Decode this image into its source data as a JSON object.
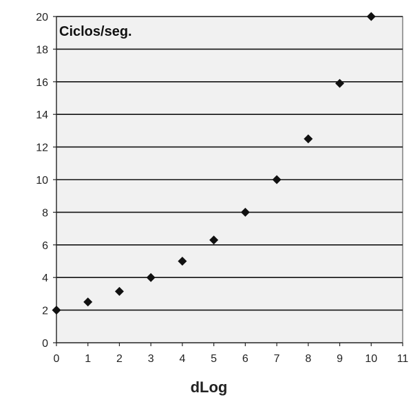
{
  "chart_data": {
    "type": "scatter",
    "title": "",
    "xlabel": "dLog",
    "ylabel": "Ciclos/seg.",
    "xlim": [
      0,
      11
    ],
    "ylim": [
      0,
      20
    ],
    "x_ticks": [
      0,
      1,
      2,
      3,
      4,
      5,
      6,
      7,
      8,
      9,
      10,
      11
    ],
    "y_ticks": [
      0,
      2,
      4,
      6,
      8,
      10,
      12,
      14,
      16,
      18,
      20
    ],
    "grid": "horizontal",
    "legend": "none",
    "series": [
      {
        "x": [
          0,
          1,
          2,
          3,
          4,
          5,
          6,
          7,
          8,
          9,
          10
        ],
        "y": [
          2,
          2.5,
          3.15,
          4,
          5,
          6.3,
          8,
          10,
          12.5,
          15.9,
          20
        ]
      }
    ],
    "colors": {
      "plot_background": "#f1f1f1",
      "gridline": "#111111",
      "marker": "#111111",
      "axis": "#222222"
    }
  }
}
